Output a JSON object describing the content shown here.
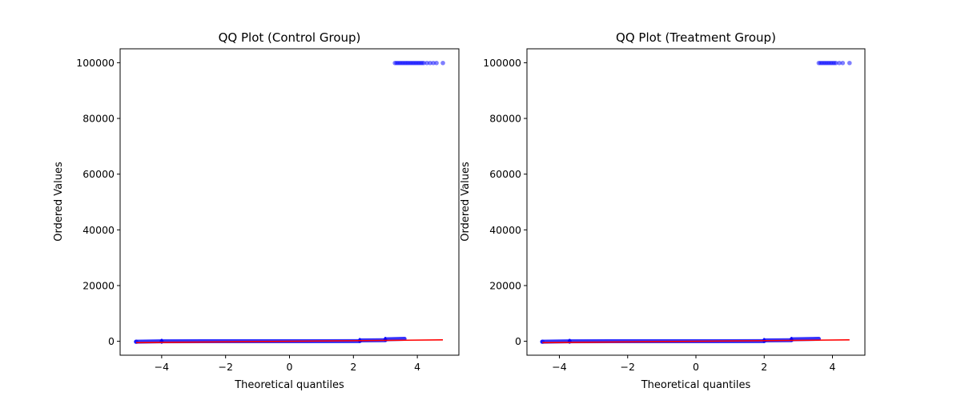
{
  "chart_data": [
    {
      "type": "scatter",
      "title": "QQ Plot (Control Group)",
      "xlabel": "Theoretical quantiles",
      "ylabel": "Ordered Values",
      "xlim": [
        -5.3,
        5.3
      ],
      "ylim": [
        -5000,
        105000
      ],
      "xticks": [
        -4,
        -2,
        0,
        2,
        4
      ],
      "xtick_labels": [
        "−4",
        "−2",
        "0",
        "2",
        "4"
      ],
      "yticks": [
        0,
        20000,
        40000,
        60000,
        80000,
        100000
      ],
      "ytick_labels": [
        "0",
        "20000",
        "40000",
        "60000",
        "80000",
        "100000"
      ],
      "grid": false,
      "points_color": "#0000ff",
      "line_color": "#ff0000",
      "body_segments": [
        {
          "x": [
            -4.8,
            -4.0
          ],
          "y": [
            -150,
            0
          ]
        },
        {
          "x": [
            -4.0,
            2.2
          ],
          "y": [
            0,
            50
          ]
        },
        {
          "x": [
            2.2,
            3.0
          ],
          "y": [
            300,
            400
          ]
        },
        {
          "x": [
            3.0,
            3.6
          ],
          "y": [
            700,
            900
          ]
        }
      ],
      "outliers_x": [
        3.3,
        3.35,
        3.4,
        3.45,
        3.5,
        3.55,
        3.6,
        3.65,
        3.7,
        3.75,
        3.8,
        3.85,
        3.9,
        3.95,
        4.0,
        4.05,
        4.1,
        4.15,
        4.2,
        4.3,
        4.4,
        4.5,
        4.6,
        4.8
      ],
      "outliers_y": 99900,
      "fit_line": {
        "x": [
          -4.8,
          4.8
        ],
        "y": [
          -500,
          500
        ]
      }
    },
    {
      "type": "scatter",
      "title": "QQ Plot (Treatment Group)",
      "xlabel": "Theoretical quantiles",
      "ylabel": "Ordered Values",
      "xlim": [
        -4.95,
        4.95
      ],
      "ylim": [
        -5000,
        105000
      ],
      "xticks": [
        -4,
        -2,
        0,
        2,
        4
      ],
      "xtick_labels": [
        "−4",
        "−2",
        "0",
        "2",
        "4"
      ],
      "yticks": [
        0,
        20000,
        40000,
        60000,
        80000,
        100000
      ],
      "ytick_labels": [
        "0",
        "20000",
        "40000",
        "60000",
        "80000",
        "100000"
      ],
      "grid": false,
      "points_color": "#0000ff",
      "line_color": "#ff0000",
      "body_segments": [
        {
          "x": [
            -4.5,
            -3.7
          ],
          "y": [
            -150,
            0
          ]
        },
        {
          "x": [
            -3.7,
            2.0
          ],
          "y": [
            0,
            50
          ]
        },
        {
          "x": [
            2.0,
            2.8
          ],
          "y": [
            300,
            400
          ]
        },
        {
          "x": [
            2.8,
            3.6
          ],
          "y": [
            700,
            900
          ]
        }
      ],
      "outliers_x": [
        3.6,
        3.65,
        3.7,
        3.75,
        3.8,
        3.85,
        3.9,
        3.95,
        4.0,
        4.05,
        4.1,
        4.2,
        4.3,
        4.5
      ],
      "outliers_y": 99900,
      "fit_line": {
        "x": [
          -4.5,
          4.5
        ],
        "y": [
          -500,
          500
        ]
      }
    }
  ]
}
